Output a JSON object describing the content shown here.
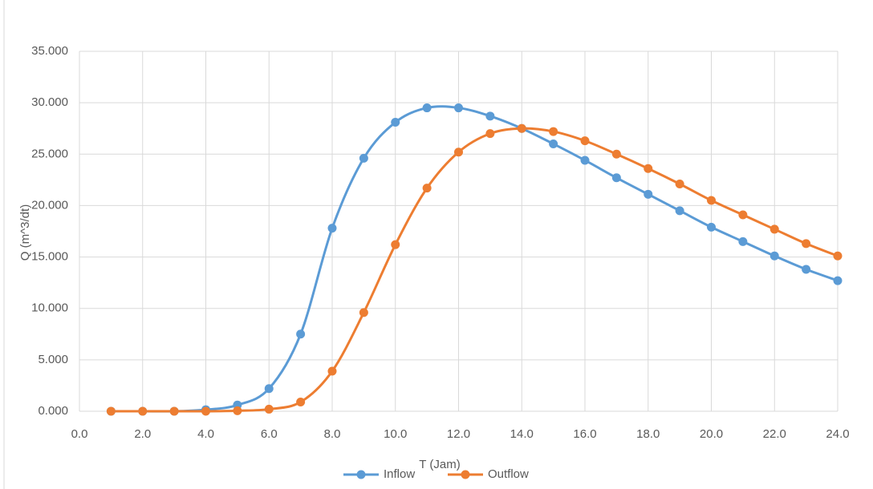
{
  "chart_data": {
    "type": "line",
    "x_label": "T (Jam)",
    "y_label": "Q (m^3/dt)",
    "x": [
      1,
      2,
      3,
      4,
      5,
      6,
      7,
      8,
      9,
      10,
      11,
      12,
      13,
      14,
      15,
      16,
      17,
      18,
      19,
      20,
      21,
      22,
      23,
      24
    ],
    "series": [
      {
        "name": "Inflow",
        "color": "#5b9bd5",
        "values": [
          0,
          0,
          0,
          0.15,
          0.6,
          2.2,
          7.5,
          17.8,
          24.6,
          28.1,
          29.5,
          29.5,
          28.7,
          27.5,
          26.0,
          24.4,
          22.7,
          21.1,
          19.5,
          17.9,
          16.5,
          15.1,
          13.8,
          12.7
        ]
      },
      {
        "name": "Outflow",
        "color": "#ed7d31",
        "values": [
          0,
          0,
          0,
          0,
          0.05,
          0.2,
          0.9,
          3.9,
          9.6,
          16.2,
          21.7,
          25.2,
          27.0,
          27.5,
          27.2,
          26.3,
          25.0,
          23.6,
          22.1,
          20.5,
          19.1,
          17.7,
          16.3,
          15.1
        ]
      }
    ],
    "xlim": [
      0,
      24
    ],
    "xticks": [
      {
        "value": 0,
        "label": "0.0"
      },
      {
        "value": 2,
        "label": "2.0"
      },
      {
        "value": 4,
        "label": "4.0"
      },
      {
        "value": 6,
        "label": "6.0"
      },
      {
        "value": 8,
        "label": "8.0"
      },
      {
        "value": 10,
        "label": "10.0"
      },
      {
        "value": 12,
        "label": "12.0"
      },
      {
        "value": 14,
        "label": "14.0"
      },
      {
        "value": 16,
        "label": "16.0"
      },
      {
        "value": 18,
        "label": "18.0"
      },
      {
        "value": 20,
        "label": "20.0"
      },
      {
        "value": 22,
        "label": "22.0"
      },
      {
        "value": 24,
        "label": "24.0"
      }
    ],
    "ylim": [
      0,
      35
    ],
    "yticks": [
      {
        "value": 0,
        "label": "0.000"
      },
      {
        "value": 5,
        "label": "5.000"
      },
      {
        "value": 10,
        "label": "10.000"
      },
      {
        "value": 15,
        "label": "15.000"
      },
      {
        "value": 20,
        "label": "20.000"
      },
      {
        "value": 25,
        "label": "25.000"
      },
      {
        "value": 30,
        "label": "30.000"
      },
      {
        "value": 35,
        "label": "35.000"
      }
    ],
    "grid": true,
    "legend": "bottom",
    "smooth": true
  }
}
